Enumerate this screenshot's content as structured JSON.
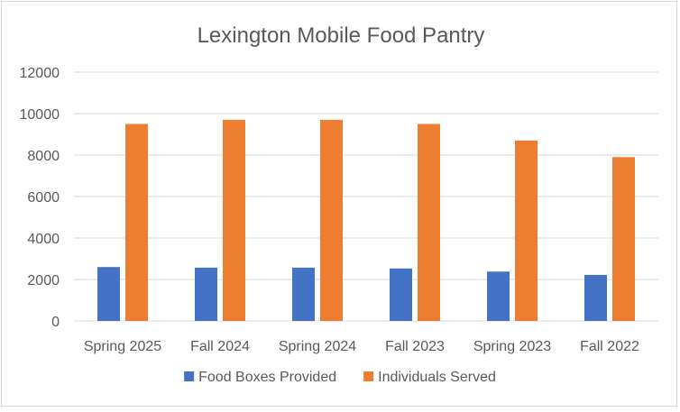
{
  "chart_data": {
    "type": "bar",
    "title": "Lexington Mobile Food Pantry",
    "xlabel": "",
    "ylabel": "",
    "categories": [
      "Spring 2025",
      "Fall 2024",
      "Spring 2024",
      "Fall 2023",
      "Spring 2023",
      "Fall 2022"
    ],
    "series": [
      {
        "name": "Food Boxes Provided",
        "color": "#4472C4",
        "values": [
          2600,
          2570,
          2570,
          2530,
          2380,
          2220
        ]
      },
      {
        "name": "Individuals Served",
        "color": "#ED7D31",
        "values": [
          9500,
          9700,
          9700,
          9500,
          8700,
          7900
        ]
      }
    ],
    "ylim": [
      0,
      12000
    ],
    "yticks": [
      0,
      2000,
      4000,
      6000,
      8000,
      10000,
      12000
    ],
    "grid": true,
    "gridColor": "#d9d9d9",
    "legend_position": "bottom"
  }
}
